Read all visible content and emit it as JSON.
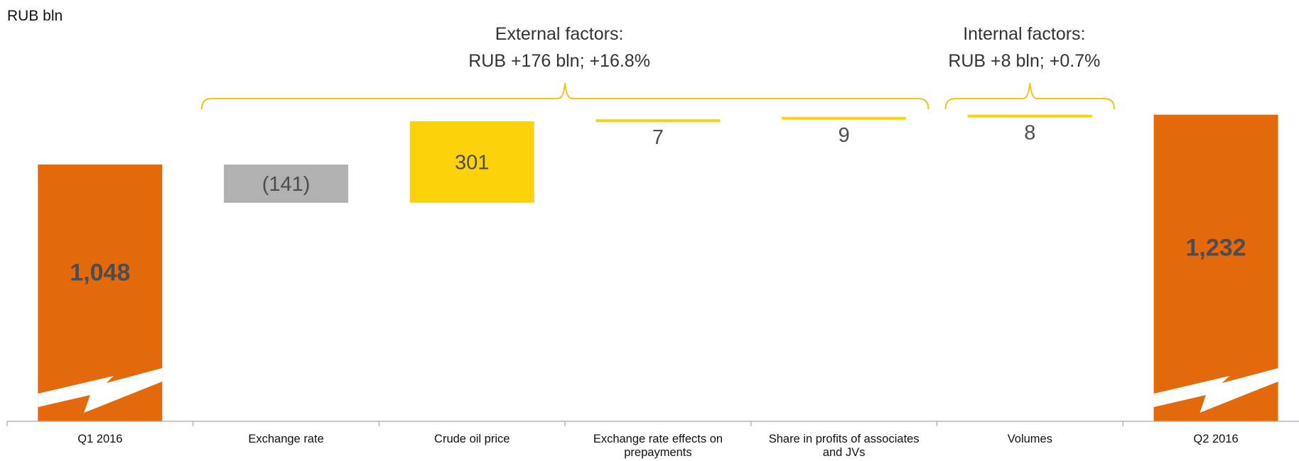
{
  "chart_data": {
    "type": "bar",
    "subtype": "waterfall",
    "unit_label": "RUB bln",
    "axis_broken": true,
    "categories": [
      "Q1 2016",
      "Exchange rate",
      "Crude oil price",
      "Exchange rate effects on prepayments",
      "Share in profits of associates and JVs",
      "Volumes",
      "Q2 2016"
    ],
    "category_lines": [
      [
        "Q1 2016"
      ],
      [
        "Exchange rate"
      ],
      [
        "Crude oil price"
      ],
      [
        "Exchange rate effects on",
        "prepayments"
      ],
      [
        "Share in profits of associates",
        "and JVs"
      ],
      [
        "Volumes"
      ],
      [
        "Q2 2016"
      ]
    ],
    "values": [
      1048,
      -141,
      301,
      7,
      9,
      8,
      1232
    ],
    "value_labels": [
      "1,048",
      "(141)",
      "301",
      "7",
      "9",
      "8",
      "1,232"
    ],
    "bar_kinds": [
      "total",
      "delta",
      "delta",
      "delta",
      "delta",
      "delta",
      "total"
    ],
    "groups": [
      {
        "title": "External factors:",
        "summary": "RUB +176 bln; +16.8%",
        "from_index": 1,
        "to_index": 4
      },
      {
        "title": "Internal factors:",
        "summary": "RUB +8 bln; +0.7%",
        "from_index": 5,
        "to_index": 5
      }
    ],
    "colors": {
      "total": "#E3690B",
      "negative": "#B1B1B1",
      "positive": "#FCD20B",
      "bracket": "#F0C31C",
      "label_dark": "#4D4D4D",
      "axis": "#A6A6A6"
    }
  }
}
